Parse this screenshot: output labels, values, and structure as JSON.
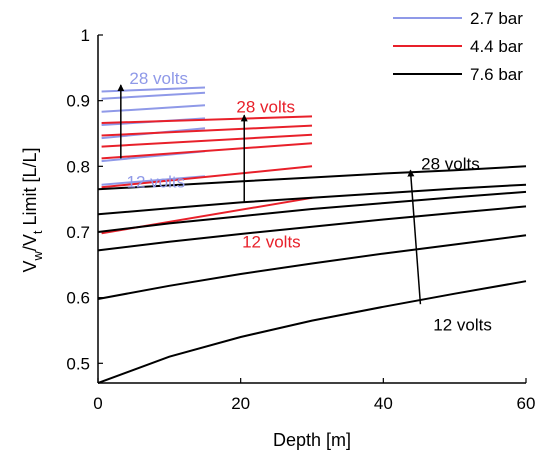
{
  "chart_data": {
    "type": "line",
    "title": "",
    "xlabel": "Depth [m]",
    "ylabel_parts": [
      "V",
      "w",
      "/V",
      "t",
      " Limit [L/L]"
    ],
    "xlim": [
      0,
      60
    ],
    "ylim": [
      0.47,
      1.0
    ],
    "xticks": [
      0,
      20,
      40,
      60
    ],
    "yticks": [
      0.5,
      0.6,
      0.7,
      0.8,
      0.9,
      1
    ],
    "grid": false,
    "legend_position": "top-right",
    "series": [
      {
        "name": "2.7 bar",
        "color": "#8f99e8",
        "lines": [
          {
            "x": [
              0.5,
              15
            ],
            "y": [
              0.772,
              0.785
            ]
          },
          {
            "x": [
              0.5,
              15
            ],
            "y": [
              0.808,
              0.823
            ]
          },
          {
            "x": [
              0.5,
              15
            ],
            "y": [
              0.843,
              0.858
            ]
          },
          {
            "x": [
              0.5,
              15
            ],
            "y": [
              0.863,
              0.873
            ]
          },
          {
            "x": [
              0.5,
              15
            ],
            "y": [
              0.883,
              0.893
            ]
          },
          {
            "x": [
              0.5,
              15
            ],
            "y": [
              0.903,
              0.912
            ]
          },
          {
            "x": [
              0.5,
              15
            ],
            "y": [
              0.914,
              0.92
            ]
          }
        ]
      },
      {
        "name": "4.4 bar",
        "color": "#e8202a",
        "lines": [
          {
            "x": [
              0.5,
              30
            ],
            "y": [
              0.698,
              0.752
            ]
          },
          {
            "x": [
              0.5,
              30
            ],
            "y": [
              0.768,
              0.8
            ]
          },
          {
            "x": [
              0.5,
              30
            ],
            "y": [
              0.812,
              0.835
            ]
          },
          {
            "x": [
              0.5,
              30
            ],
            "y": [
              0.83,
              0.848
            ]
          },
          {
            "x": [
              0.5,
              30
            ],
            "y": [
              0.847,
              0.862
            ]
          },
          {
            "x": [
              0.5,
              30
            ],
            "y": [
              0.866,
              0.876
            ]
          }
        ]
      },
      {
        "name": "7.6 bar",
        "color": "#000000",
        "lines": [
          {
            "x": [
              0,
              10,
              20,
              30,
              40,
              50,
              60
            ],
            "y": [
              0.47,
              0.51,
              0.54,
              0.565,
              0.586,
              0.606,
              0.625
            ]
          },
          {
            "x": [
              0,
              10,
              20,
              30,
              40,
              50,
              60
            ],
            "y": [
              0.598,
              0.618,
              0.636,
              0.652,
              0.667,
              0.681,
              0.695
            ]
          },
          {
            "x": [
              0,
              10,
              20,
              30,
              40,
              50,
              60
            ],
            "y": [
              0.672,
              0.685,
              0.697,
              0.708,
              0.719,
              0.729,
              0.739
            ]
          },
          {
            "x": [
              0,
              10,
              20,
              30,
              40,
              50,
              60
            ],
            "y": [
              0.7,
              0.713,
              0.724,
              0.735,
              0.744,
              0.753,
              0.761
            ]
          },
          {
            "x": [
              0,
              10,
              20,
              30,
              40,
              50,
              60
            ],
            "y": [
              0.727,
              0.736,
              0.745,
              0.752,
              0.759,
              0.766,
              0.772
            ]
          },
          {
            "x": [
              0,
              10,
              20,
              30,
              40,
              50,
              60
            ],
            "y": [
              0.765,
              0.771,
              0.777,
              0.783,
              0.789,
              0.794,
              0.8
            ]
          }
        ]
      }
    ],
    "annotations": [
      {
        "text": "28 volts",
        "color": "#8f99e8",
        "x": 4.4,
        "y": 0.925,
        "anchor": "start"
      },
      {
        "text": "12 volts",
        "color": "#8f99e8",
        "x": 4.0,
        "y": 0.768,
        "anchor": "start"
      },
      {
        "text": "28 volts",
        "color": "#e8202a",
        "x": 19.4,
        "y": 0.882,
        "anchor": "start"
      },
      {
        "text": "12 volts",
        "color": "#e8202a",
        "x": 20.2,
        "y": 0.676,
        "anchor": "start"
      },
      {
        "text": "28 volts",
        "color": "#000000",
        "x": 45.3,
        "y": 0.795,
        "anchor": "start"
      },
      {
        "text": "12 volts",
        "color": "#000000",
        "x": 47.0,
        "y": 0.55,
        "anchor": "start"
      }
    ],
    "arrows": [
      {
        "color": "#000000",
        "from": [
          3.2,
          0.812
        ],
        "to": [
          3.2,
          0.924
        ]
      },
      {
        "color": "#000000",
        "from": [
          20.5,
          0.745
        ],
        "to": [
          20.5,
          0.878
        ]
      },
      {
        "color": "#000000",
        "from": [
          45.2,
          0.59
        ],
        "to": [
          43.8,
          0.794
        ]
      }
    ]
  }
}
